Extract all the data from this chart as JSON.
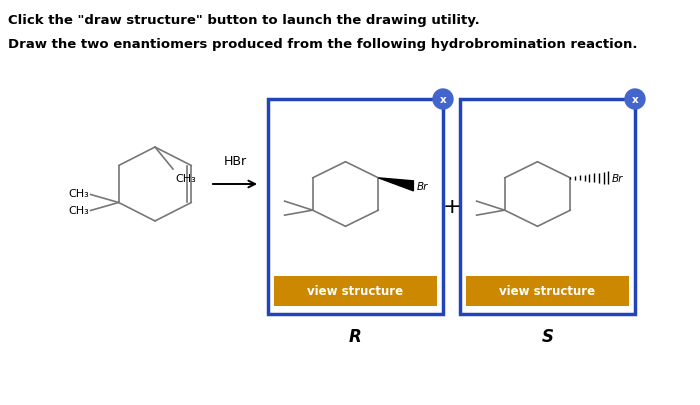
{
  "title_line1": "Click the \"draw structure\" button to launch the drawing utility.",
  "title_line2": "Draw the two enantiomers produced from the following hydrobromination reaction.",
  "hbr_label": "HBr",
  "plus_sign": "+",
  "r_label": "R",
  "s_label": "S",
  "view_btn_text": "view structure",
  "btn_color": "#CC8800",
  "btn_text_color": "#ffffff",
  "box_border_color": "#2244BB",
  "close_btn_color": "#4466CC",
  "bg_color": "#ffffff",
  "text_color": "#000000",
  "mol_line_color": "#777777",
  "mol_line_lw": 1.2,
  "arrow_color": "#000000",
  "figw": 7.0,
  "figh": 4.06,
  "dpi": 100
}
